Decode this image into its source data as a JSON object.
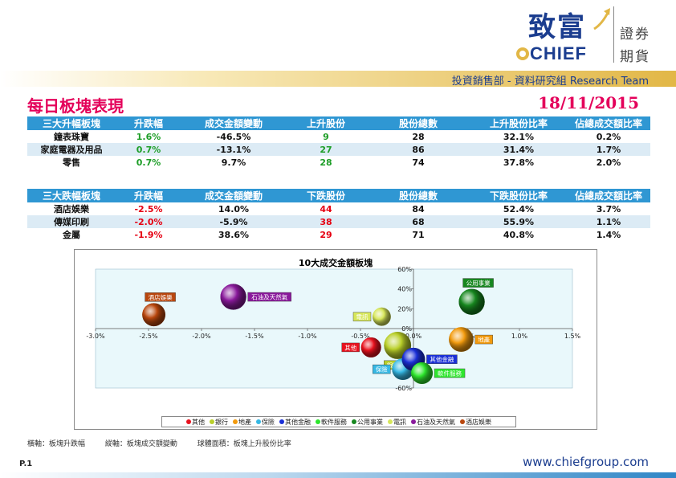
{
  "logo": {
    "cn_name": "致富",
    "en_name": "CHIEF",
    "side_line1": "證券",
    "side_line2": "期貨"
  },
  "header": {
    "department": "投資銷售部 - 資料研究組 Research Team",
    "title": "每日板塊表現",
    "date": "18/11/2015"
  },
  "gainers": {
    "headers": [
      "三大升幅板塊",
      "升跌幅",
      "成交金額變動",
      "上升股份",
      "股份總數",
      "上升股份比率",
      "佔總成交額比率"
    ],
    "rows": [
      {
        "sector": "鐘表珠寶",
        "change": "1.6%",
        "turnover_change": "-46.5%",
        "count": "9",
        "total": "28",
        "ratio": "32.1%",
        "share": "0.2%"
      },
      {
        "sector": "家庭電器及用品",
        "change": "0.7%",
        "turnover_change": "-13.1%",
        "count": "27",
        "total": "86",
        "ratio": "31.4%",
        "share": "1.7%"
      },
      {
        "sector": "零售",
        "change": "0.7%",
        "turnover_change": "9.7%",
        "count": "28",
        "total": "74",
        "ratio": "37.8%",
        "share": "2.0%"
      }
    ]
  },
  "losers": {
    "headers": [
      "三大跌幅板塊",
      "升跌幅",
      "成交金額變動",
      "下跌股份",
      "股份總數",
      "下跌股份比率",
      "佔總成交額比率"
    ],
    "rows": [
      {
        "sector": "酒店娛樂",
        "change": "-2.5%",
        "turnover_change": "14.0%",
        "count": "44",
        "total": "84",
        "ratio": "52.4%",
        "share": "3.7%"
      },
      {
        "sector": "傳媒印刷",
        "change": "-2.0%",
        "turnover_change": "-5.9%",
        "count": "38",
        "total": "68",
        "ratio": "55.9%",
        "share": "1.1%"
      },
      {
        "sector": "金屬",
        "change": "-1.9%",
        "turnover_change": "38.6%",
        "count": "29",
        "total": "71",
        "ratio": "40.8%",
        "share": "1.4%"
      }
    ]
  },
  "chart_data": {
    "type": "scatter",
    "title": "10大成交金額板塊",
    "xlim": [
      -3.0,
      1.5
    ],
    "ylim": [
      -60,
      60
    ],
    "x_ticks": [
      "-3.0%",
      "-2.5%",
      "-2.0%",
      "-1.5%",
      "-1.0%",
      "-0.5%",
      "0.0%",
      "0.5%",
      "1.0%",
      "1.5%"
    ],
    "x_tick_values": [
      -3.0,
      -2.5,
      -2.0,
      -1.5,
      -1.0,
      -0.5,
      0.0,
      0.5,
      1.0,
      1.5
    ],
    "y_ticks": [
      "-60%",
      "-40%",
      "-20%",
      "0%",
      "20%",
      "40%",
      "60%"
    ],
    "y_tick_values": [
      -60,
      -40,
      -20,
      0,
      20,
      40,
      60
    ],
    "series": [
      {
        "name": "其他",
        "x": -0.4,
        "y": -19,
        "size": 0.3,
        "color": "#e8121e",
        "label_pos": "left"
      },
      {
        "name": "銀行",
        "x": -0.15,
        "y": -17,
        "size": 0.55,
        "color": "#b9cf2a",
        "label_pos": "below"
      },
      {
        "name": "地產",
        "x": 0.45,
        "y": -11,
        "size": 0.45,
        "color": "#f29a0d",
        "label_pos": "right"
      },
      {
        "name": "保險",
        "x": -0.1,
        "y": -41,
        "size": 0.35,
        "color": "#36b8e4",
        "label_pos": "left"
      },
      {
        "name": "其他金融",
        "x": 0.0,
        "y": -31,
        "size": 0.4,
        "color": "#1a2fd6",
        "label_pos": "right"
      },
      {
        "name": "軟件服務",
        "x": 0.08,
        "y": -45,
        "size": 0.35,
        "color": "#2ee62e",
        "label_pos": "right"
      },
      {
        "name": "公用事業",
        "x": 0.55,
        "y": 27,
        "size": 0.5,
        "color": "#17871f",
        "label_pos": "top"
      },
      {
        "name": "電訊",
        "x": -0.3,
        "y": 12,
        "size": 0.25,
        "color": "#d6e65a",
        "label_pos": "left"
      },
      {
        "name": "石油及天然氣",
        "x": -1.7,
        "y": 32,
        "size": 0.5,
        "color": "#8a1a9c",
        "label_pos": "right"
      },
      {
        "name": "酒店娛樂",
        "x": -2.45,
        "y": 14,
        "size": 0.4,
        "color": "#b9470e",
        "label_pos": "top"
      }
    ]
  },
  "footnote": {
    "x_axis": "橫軸：板塊升跌幅",
    "y_axis": "縱軸：板塊成交額變動",
    "bubble": "球體面積：板塊上升股份比率"
  },
  "footer": {
    "page": "P.1",
    "url": "www.chiefgroup.com"
  }
}
